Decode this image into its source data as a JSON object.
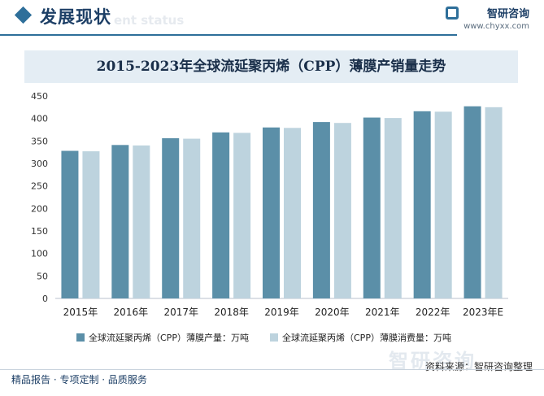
{
  "header": {
    "title": "发展现状",
    "ghost_text": "ent status",
    "brand_name": "智研咨询",
    "brand_url": "www.chyxx.com"
  },
  "chart_title": "2015-2023年全球流延聚丙烯（CPP）薄膜产销量走势",
  "colors": {
    "production": "#5b8fa8",
    "consumption": "#bdd3de",
    "accent": "#2e6f9a"
  },
  "chart_data": {
    "type": "bar",
    "title": "2015-2023年全球流延聚丙烯（CPP）薄膜产销量走势",
    "categories": [
      "2015年",
      "2016年",
      "2017年",
      "2018年",
      "2019年",
      "2020年",
      "2021年",
      "2022年",
      "2023年E"
    ],
    "series": [
      {
        "name": "全球流延聚丙烯（CPP）薄膜产量：万吨",
        "values": [
          328,
          341,
          356,
          369,
          380,
          392,
          402,
          416,
          427
        ]
      },
      {
        "name": "全球流延聚丙烯（CPP）薄膜消费量：万吨",
        "values": [
          327,
          340,
          355,
          368,
          379,
          390,
          401,
          415,
          425
        ]
      }
    ],
    "yticks": [
      "0",
      "50",
      "100",
      "150",
      "200",
      "250",
      "300",
      "350",
      "400",
      "450"
    ],
    "ylim": [
      0,
      450
    ],
    "grid": false,
    "legend_position": "bottom"
  },
  "legend": {
    "production": "全球流延聚丙烯（CPP）薄膜产量：万吨",
    "consumption": "全球流延聚丙烯（CPP）薄膜消费量：万吨"
  },
  "watermark": "智研咨询",
  "source": "资料来源：智研咨询整理",
  "footer": "精品报告 · 专项定制 · 品质服务"
}
